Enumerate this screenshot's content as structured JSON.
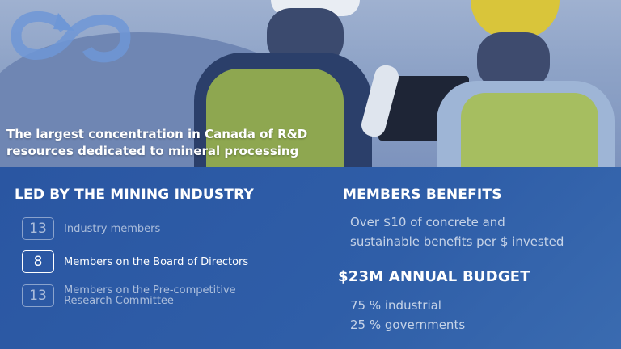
{
  "hero": {
    "tagline_line1": "The largest concentration in Canada of R&D",
    "tagline_line2": "resources dedicated to mineral processing",
    "logo": "infinity-arrow-logo"
  },
  "left": {
    "title": "LED BY THE MINING INDUSTRY",
    "items": [
      {
        "count": "13",
        "label": "Industry members"
      },
      {
        "count": "8",
        "label": "Members on the Board of Directors",
        "active": true
      },
      {
        "count": "13",
        "label": "Members on the Pre-competitive Research Committee"
      }
    ]
  },
  "right": {
    "benefits_title": "MEMBERS BENEFITS",
    "benefits_line1": "Over $10 of concrete and",
    "benefits_line2": "sustainable benefits per $ invested",
    "budget_title": "$23M ANNUAL BUDGET",
    "budget_line1": "75 % industrial",
    "budget_line2": "25 % governments"
  },
  "colors": {
    "panel": "#2c58a3",
    "accent_logo": "#5b8fd6"
  }
}
